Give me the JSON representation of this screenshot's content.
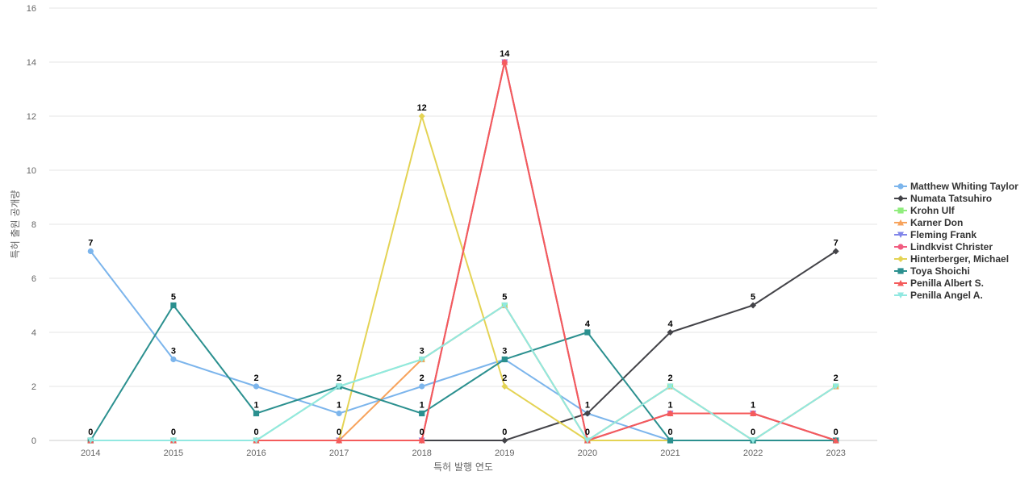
{
  "chart_data": {
    "type": "line",
    "title": "",
    "xlabel": "특허 발행 연도",
    "ylabel": "특허 출원 공개량",
    "x": [
      "2014",
      "2015",
      "2016",
      "2017",
      "2018",
      "2019",
      "2020",
      "2021",
      "2022",
      "2023"
    ],
    "ylim": [
      0,
      16
    ],
    "yticks": [
      0,
      2,
      4,
      6,
      8,
      10,
      12,
      14,
      16
    ],
    "grid": true,
    "legend_position": "right",
    "series": [
      {
        "name": "Matthew Whiting Taylor",
        "color": "#7cb5ec",
        "marker": "circle",
        "values": [
          7,
          3,
          2,
          1,
          2,
          3,
          1,
          0,
          0,
          0
        ]
      },
      {
        "name": "Numata Tatsuhiro",
        "color": "#434348",
        "marker": "diamond",
        "values": [
          0,
          0,
          0,
          0,
          0,
          0,
          1,
          4,
          5,
          7
        ]
      },
      {
        "name": "Krohn Ulf",
        "color": "#90ed7d",
        "marker": "square",
        "values": [
          0,
          0,
          0,
          2,
          3,
          5,
          0,
          2,
          0,
          2
        ]
      },
      {
        "name": "Karner Don",
        "color": "#f7a35c",
        "marker": "triangle",
        "values": [
          0,
          0,
          0,
          0,
          3,
          5,
          0,
          2,
          0,
          2
        ]
      },
      {
        "name": "Fleming Frank",
        "color": "#8085e9",
        "marker": "triangle-down",
        "values": [
          0,
          0,
          0,
          0,
          0,
          14,
          0,
          1,
          1,
          0
        ]
      },
      {
        "name": "Lindkvist Christer",
        "color": "#f15c80",
        "marker": "circle",
        "values": [
          0,
          0,
          0,
          0,
          0,
          14,
          0,
          1,
          1,
          0
        ]
      },
      {
        "name": "Hinterberger, Michael",
        "color": "#e4d354",
        "marker": "diamond",
        "values": [
          0,
          0,
          0,
          0,
          12,
          2,
          0,
          0,
          0,
          0
        ]
      },
      {
        "name": "Toya Shoichi",
        "color": "#2b908f",
        "marker": "square",
        "values": [
          0,
          5,
          1,
          2,
          1,
          3,
          4,
          0,
          0,
          0
        ]
      },
      {
        "name": "Penilla Albert S.",
        "color": "#f45b5b",
        "marker": "triangle",
        "values": [
          0,
          0,
          0,
          0,
          0,
          14,
          0,
          1,
          1,
          0
        ]
      },
      {
        "name": "Penilla Angel A.",
        "color": "#91e8e1",
        "marker": "triangle-down",
        "values": [
          0,
          0,
          0,
          2,
          3,
          5,
          0,
          2,
          0,
          2
        ]
      }
    ],
    "data_labels": [
      {
        "x": "2014",
        "y": 7,
        "text": "7"
      },
      {
        "x": "2014",
        "y": 0,
        "text": "0"
      },
      {
        "x": "2015",
        "y": 5,
        "text": "5"
      },
      {
        "x": "2015",
        "y": 3,
        "text": "3"
      },
      {
        "x": "2015",
        "y": 0,
        "text": "0"
      },
      {
        "x": "2016",
        "y": 2,
        "text": "2"
      },
      {
        "x": "2016",
        "y": 1,
        "text": "1"
      },
      {
        "x": "2016",
        "y": 0,
        "text": "0"
      },
      {
        "x": "2017",
        "y": 2,
        "text": "2"
      },
      {
        "x": "2017",
        "y": 1,
        "text": "1"
      },
      {
        "x": "2017",
        "y": 0,
        "text": "0"
      },
      {
        "x": "2018",
        "y": 12,
        "text": "12"
      },
      {
        "x": "2018",
        "y": 3,
        "text": "3"
      },
      {
        "x": "2018",
        "y": 2,
        "text": "2"
      },
      {
        "x": "2018",
        "y": 1,
        "text": "1"
      },
      {
        "x": "2018",
        "y": 0,
        "text": "0"
      },
      {
        "x": "2019",
        "y": 14,
        "text": "14"
      },
      {
        "x": "2019",
        "y": 5,
        "text": "5"
      },
      {
        "x": "2019",
        "y": 3,
        "text": "3"
      },
      {
        "x": "2019",
        "y": 2,
        "text": "2"
      },
      {
        "x": "2019",
        "y": 0,
        "text": "0"
      },
      {
        "x": "2020",
        "y": 4,
        "text": "4"
      },
      {
        "x": "2020",
        "y": 1,
        "text": "1"
      },
      {
        "x": "2020",
        "y": 0,
        "text": "0"
      },
      {
        "x": "2021",
        "y": 4,
        "text": "4"
      },
      {
        "x": "2021",
        "y": 2,
        "text": "2"
      },
      {
        "x": "2021",
        "y": 1,
        "text": "1"
      },
      {
        "x": "2021",
        "y": 0,
        "text": "0"
      },
      {
        "x": "2022",
        "y": 5,
        "text": "5"
      },
      {
        "x": "2022",
        "y": 1,
        "text": "1"
      },
      {
        "x": "2022",
        "y": 0,
        "text": "0"
      },
      {
        "x": "2023",
        "y": 7,
        "text": "7"
      },
      {
        "x": "2023",
        "y": 2,
        "text": "2"
      },
      {
        "x": "2023",
        "y": 0,
        "text": "0"
      }
    ]
  }
}
